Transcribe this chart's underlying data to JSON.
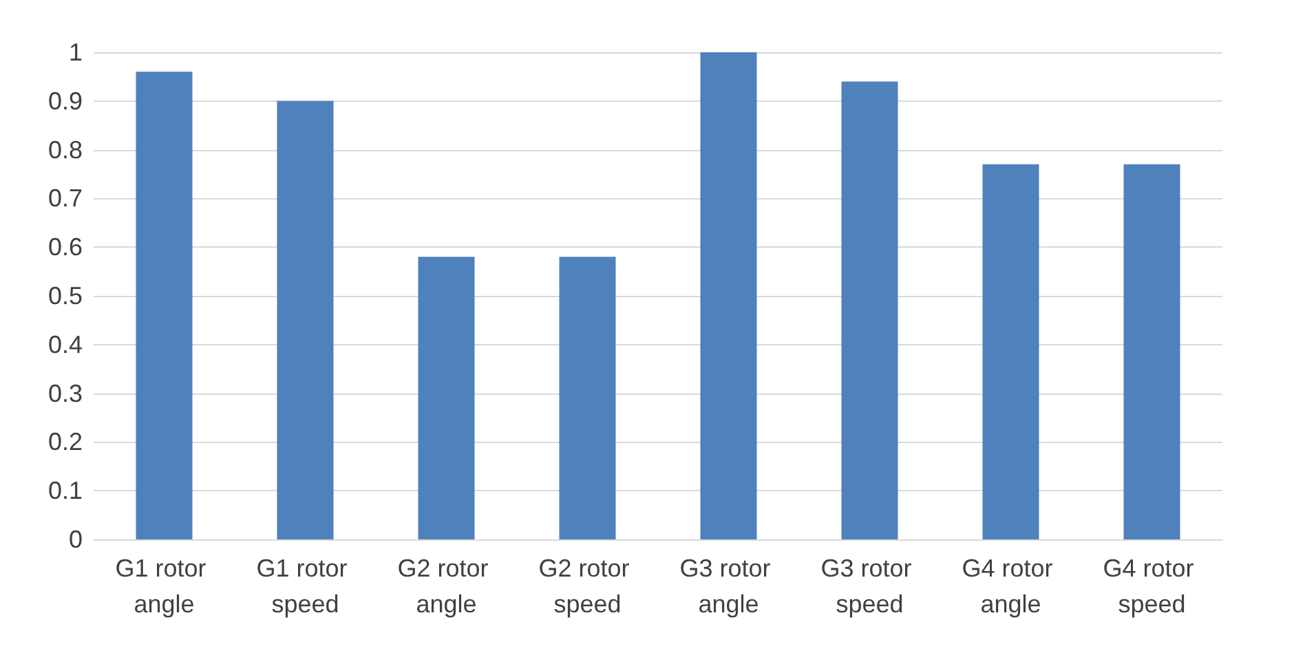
{
  "chart_data": {
    "type": "bar",
    "categories": [
      "G1 rotor angle",
      "G1 rotor speed",
      "G2 rotor angle",
      "G2 rotor speed",
      "G3 rotor angle",
      "G3 rotor speed",
      "G4 rotor angle",
      "G4 rotor speed"
    ],
    "values": [
      0.96,
      0.9,
      0.58,
      0.58,
      1.0,
      0.94,
      0.77,
      0.77
    ],
    "color": "#4f81bd",
    "ylim": [
      0,
      1
    ],
    "yticks": [
      0,
      0.1,
      0.2,
      0.3,
      0.4,
      0.5,
      0.6,
      0.7,
      0.8,
      0.9,
      1
    ],
    "grid": "y"
  }
}
